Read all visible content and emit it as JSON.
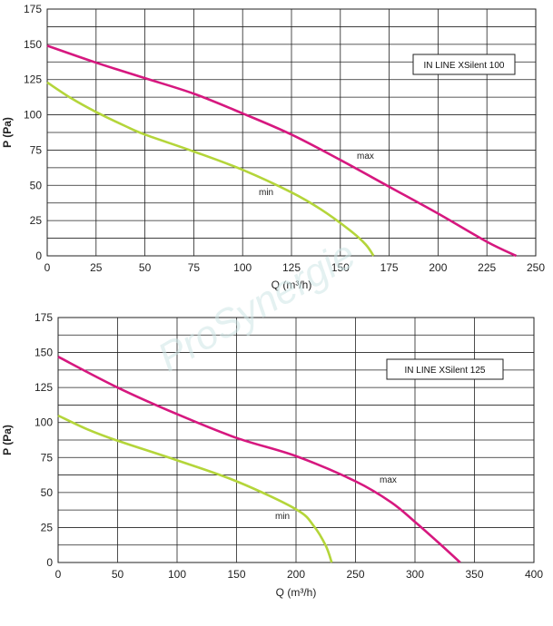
{
  "watermark": "ProSynergie",
  "chart_data": [
    {
      "type": "line",
      "legend_box": "IN LINE XSilent 100",
      "xlabel": "Q (m³/h)",
      "ylabel": "P (Pa)",
      "xlim": [
        0,
        250
      ],
      "ylim": [
        0,
        175
      ],
      "xticks": [
        0,
        25,
        50,
        75,
        100,
        125,
        150,
        175,
        200,
        225,
        250
      ],
      "yticks": [
        0,
        25,
        50,
        75,
        100,
        125,
        150,
        175
      ],
      "grid": true,
      "legend_position": "top-right",
      "series": [
        {
          "name": "max",
          "color": "#d6187f",
          "x": [
            0,
            25,
            50,
            75,
            100,
            125,
            150,
            175,
            200,
            225,
            240
          ],
          "y": [
            149,
            137,
            126,
            115,
            101,
            86,
            68,
            49,
            30,
            10,
            0
          ]
        },
        {
          "name": "min",
          "color": "#b4d53a",
          "x": [
            0,
            12,
            25,
            40,
            50,
            75,
            100,
            125,
            140,
            155,
            163,
            167
          ],
          "y": [
            123,
            112,
            102,
            92,
            86,
            74,
            61,
            45,
            33,
            18,
            8,
            0
          ]
        }
      ]
    },
    {
      "type": "line",
      "legend_box": "IN LINE XSilent 125",
      "xlabel": "Q (m³/h)",
      "ylabel": "P (Pa)",
      "xlim": [
        0,
        400
      ],
      "ylim": [
        0,
        175
      ],
      "xticks": [
        0,
        50,
        100,
        150,
        200,
        250,
        300,
        350,
        400
      ],
      "yticks": [
        0,
        25,
        50,
        75,
        100,
        125,
        150,
        175
      ],
      "grid": true,
      "legend_position": "top-right",
      "series": [
        {
          "name": "max",
          "color": "#d6187f",
          "x": [
            0,
            50,
            100,
            150,
            200,
            250,
            280,
            300,
            320,
            338
          ],
          "y": [
            147,
            125,
            106,
            89,
            76,
            58,
            43,
            29,
            14,
            0
          ]
        },
        {
          "name": "min",
          "color": "#b4d53a",
          "x": [
            0,
            25,
            50,
            100,
            150,
            200,
            215,
            225,
            230
          ],
          "y": [
            105,
            95,
            87,
            73,
            58,
            38,
            26,
            12,
            0
          ]
        }
      ]
    }
  ]
}
